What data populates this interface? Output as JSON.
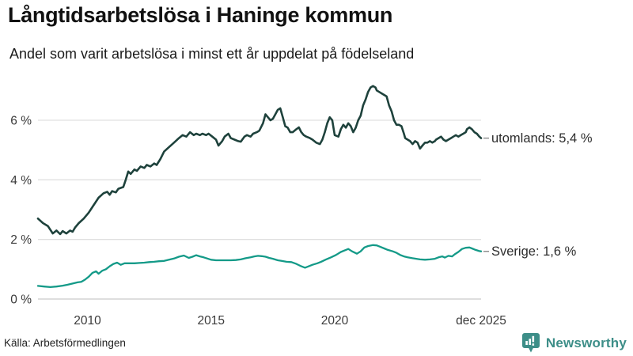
{
  "header": {
    "title": "Långtidsarbetslösa i Haninge kommun",
    "subtitle": "Andel som varit arbetslösa i minst ett år uppdelat på födelseland"
  },
  "footer": {
    "source": "Källa: Arbetsförmedlingen",
    "brand": "Newsworthy",
    "brand_color": "#3d8e88"
  },
  "colors": {
    "series_utomlands": "#1e423c",
    "series_sverige": "#149a88",
    "gridline": "#e0e0e0",
    "baseline": "#c9c9c9",
    "tick_text": "#3a3a3a",
    "leader_dash": "#8a8a8a"
  },
  "chart_data": {
    "type": "line",
    "title": "Långtidsarbetslösa i Haninge kommun",
    "subtitle": "Andel som varit arbetslösa i minst ett år uppdelat på födelseland",
    "xlabel": "",
    "ylabel": "",
    "x_range": [
      2008.0,
      2025.92
    ],
    "y_range": [
      0,
      7.5
    ],
    "grid": true,
    "legend_position": "right-end-of-line",
    "x_ticks": [
      {
        "label": "2010",
        "year": 2010
      },
      {
        "label": "2015",
        "year": 2015
      },
      {
        "label": "2020",
        "year": 2020
      },
      {
        "label": "dec 2025",
        "year": 2025.92
      }
    ],
    "y_ticks": [
      {
        "label": "0 %",
        "value": 0
      },
      {
        "label": "2 %",
        "value": 2
      },
      {
        "label": "4 %",
        "value": 4
      },
      {
        "label": "6 %",
        "value": 6
      }
    ],
    "series": [
      {
        "name": "utomlands",
        "label": "utomlands: 5,4 %",
        "last_value": "5,4 %",
        "color": "#1e423c",
        "stroke_width": 2.6,
        "points": [
          [
            2008.0,
            2.7
          ],
          [
            2008.2,
            2.55
          ],
          [
            2008.4,
            2.45
          ],
          [
            2008.6,
            2.2
          ],
          [
            2008.75,
            2.3
          ],
          [
            2008.9,
            2.18
          ],
          [
            2009.0,
            2.28
          ],
          [
            2009.15,
            2.2
          ],
          [
            2009.3,
            2.3
          ],
          [
            2009.4,
            2.26
          ],
          [
            2009.5,
            2.4
          ],
          [
            2009.65,
            2.55
          ],
          [
            2009.85,
            2.7
          ],
          [
            2010.05,
            2.9
          ],
          [
            2010.25,
            3.15
          ],
          [
            2010.45,
            3.4
          ],
          [
            2010.65,
            3.55
          ],
          [
            2010.8,
            3.6
          ],
          [
            2010.9,
            3.5
          ],
          [
            2011.0,
            3.62
          ],
          [
            2011.15,
            3.58
          ],
          [
            2011.25,
            3.7
          ],
          [
            2011.45,
            3.76
          ],
          [
            2011.55,
            4.0
          ],
          [
            2011.65,
            4.28
          ],
          [
            2011.75,
            4.2
          ],
          [
            2011.9,
            4.35
          ],
          [
            2012.0,
            4.3
          ],
          [
            2012.15,
            4.45
          ],
          [
            2012.3,
            4.4
          ],
          [
            2012.4,
            4.5
          ],
          [
            2012.55,
            4.45
          ],
          [
            2012.7,
            4.55
          ],
          [
            2012.8,
            4.5
          ],
          [
            2012.95,
            4.7
          ],
          [
            2013.1,
            4.95
          ],
          [
            2013.3,
            5.1
          ],
          [
            2013.5,
            5.25
          ],
          [
            2013.7,
            5.4
          ],
          [
            2013.85,
            5.5
          ],
          [
            2014.0,
            5.45
          ],
          [
            2014.15,
            5.6
          ],
          [
            2014.3,
            5.5
          ],
          [
            2014.4,
            5.55
          ],
          [
            2014.55,
            5.5
          ],
          [
            2014.65,
            5.55
          ],
          [
            2014.8,
            5.5
          ],
          [
            2014.9,
            5.55
          ],
          [
            2015.05,
            5.45
          ],
          [
            2015.2,
            5.35
          ],
          [
            2015.3,
            5.15
          ],
          [
            2015.45,
            5.3
          ],
          [
            2015.55,
            5.45
          ],
          [
            2015.7,
            5.55
          ],
          [
            2015.8,
            5.4
          ],
          [
            2015.95,
            5.35
          ],
          [
            2016.1,
            5.3
          ],
          [
            2016.2,
            5.28
          ],
          [
            2016.35,
            5.45
          ],
          [
            2016.45,
            5.5
          ],
          [
            2016.6,
            5.45
          ],
          [
            2016.7,
            5.55
          ],
          [
            2016.85,
            5.6
          ],
          [
            2016.95,
            5.65
          ],
          [
            2017.1,
            5.9
          ],
          [
            2017.2,
            6.2
          ],
          [
            2017.3,
            6.1
          ],
          [
            2017.4,
            6.0
          ],
          [
            2017.5,
            6.05
          ],
          [
            2017.6,
            6.2
          ],
          [
            2017.7,
            6.35
          ],
          [
            2017.8,
            6.4
          ],
          [
            2017.9,
            6.1
          ],
          [
            2018.0,
            5.8
          ],
          [
            2018.1,
            5.75
          ],
          [
            2018.2,
            5.6
          ],
          [
            2018.3,
            5.6
          ],
          [
            2018.45,
            5.7
          ],
          [
            2018.55,
            5.76
          ],
          [
            2018.65,
            5.6
          ],
          [
            2018.75,
            5.5
          ],
          [
            2018.85,
            5.45
          ],
          [
            2019.0,
            5.4
          ],
          [
            2019.1,
            5.35
          ],
          [
            2019.25,
            5.25
          ],
          [
            2019.4,
            5.2
          ],
          [
            2019.5,
            5.35
          ],
          [
            2019.6,
            5.6
          ],
          [
            2019.7,
            5.9
          ],
          [
            2019.8,
            6.1
          ],
          [
            2019.9,
            6.0
          ],
          [
            2020.0,
            5.5
          ],
          [
            2020.15,
            5.45
          ],
          [
            2020.25,
            5.7
          ],
          [
            2020.35,
            5.85
          ],
          [
            2020.45,
            5.75
          ],
          [
            2020.55,
            5.9
          ],
          [
            2020.65,
            5.8
          ],
          [
            2020.75,
            5.6
          ],
          [
            2020.85,
            5.75
          ],
          [
            2020.95,
            6.0
          ],
          [
            2021.05,
            6.15
          ],
          [
            2021.15,
            6.5
          ],
          [
            2021.25,
            6.7
          ],
          [
            2021.35,
            6.95
          ],
          [
            2021.45,
            7.1
          ],
          [
            2021.55,
            7.15
          ],
          [
            2021.65,
            7.1
          ],
          [
            2021.7,
            7.0
          ],
          [
            2021.8,
            6.95
          ],
          [
            2021.9,
            6.9
          ],
          [
            2022.0,
            6.85
          ],
          [
            2022.1,
            6.8
          ],
          [
            2022.2,
            6.5
          ],
          [
            2022.3,
            6.3
          ],
          [
            2022.4,
            6.0
          ],
          [
            2022.5,
            5.85
          ],
          [
            2022.6,
            5.85
          ],
          [
            2022.7,
            5.8
          ],
          [
            2022.8,
            5.55
          ],
          [
            2022.85,
            5.4
          ],
          [
            2022.95,
            5.35
          ],
          [
            2023.05,
            5.3
          ],
          [
            2023.15,
            5.2
          ],
          [
            2023.25,
            5.3
          ],
          [
            2023.35,
            5.25
          ],
          [
            2023.45,
            5.05
          ],
          [
            2023.55,
            5.15
          ],
          [
            2023.65,
            5.25
          ],
          [
            2023.75,
            5.25
          ],
          [
            2023.85,
            5.3
          ],
          [
            2023.95,
            5.25
          ],
          [
            2024.05,
            5.3
          ],
          [
            2024.1,
            5.35
          ],
          [
            2024.2,
            5.4
          ],
          [
            2024.3,
            5.45
          ],
          [
            2024.4,
            5.35
          ],
          [
            2024.5,
            5.3
          ],
          [
            2024.6,
            5.35
          ],
          [
            2024.7,
            5.4
          ],
          [
            2024.8,
            5.45
          ],
          [
            2024.9,
            5.5
          ],
          [
            2025.0,
            5.45
          ],
          [
            2025.1,
            5.5
          ],
          [
            2025.2,
            5.55
          ],
          [
            2025.3,
            5.6
          ],
          [
            2025.35,
            5.7
          ],
          [
            2025.45,
            5.76
          ],
          [
            2025.55,
            5.7
          ],
          [
            2025.65,
            5.6
          ],
          [
            2025.75,
            5.55
          ],
          [
            2025.85,
            5.45
          ],
          [
            2025.92,
            5.4
          ]
        ]
      },
      {
        "name": "Sverige",
        "label": "Sverige: 1,6 %",
        "last_value": "1,6 %",
        "color": "#149a88",
        "stroke_width": 2.3,
        "points": [
          [
            2008.0,
            0.44
          ],
          [
            2008.25,
            0.42
          ],
          [
            2008.5,
            0.4
          ],
          [
            2008.75,
            0.42
          ],
          [
            2009.0,
            0.45
          ],
          [
            2009.2,
            0.48
          ],
          [
            2009.4,
            0.52
          ],
          [
            2009.6,
            0.56
          ],
          [
            2009.75,
            0.58
          ],
          [
            2009.9,
            0.65
          ],
          [
            2010.05,
            0.75
          ],
          [
            2010.2,
            0.88
          ],
          [
            2010.35,
            0.93
          ],
          [
            2010.45,
            0.85
          ],
          [
            2010.6,
            0.95
          ],
          [
            2010.75,
            1.0
          ],
          [
            2010.9,
            1.1
          ],
          [
            2011.05,
            1.18
          ],
          [
            2011.2,
            1.22
          ],
          [
            2011.35,
            1.15
          ],
          [
            2011.5,
            1.2
          ],
          [
            2011.7,
            1.2
          ],
          [
            2011.9,
            1.2
          ],
          [
            2012.1,
            1.21
          ],
          [
            2012.3,
            1.22
          ],
          [
            2012.5,
            1.24
          ],
          [
            2012.7,
            1.25
          ],
          [
            2012.9,
            1.27
          ],
          [
            2013.1,
            1.28
          ],
          [
            2013.3,
            1.32
          ],
          [
            2013.5,
            1.36
          ],
          [
            2013.7,
            1.42
          ],
          [
            2013.9,
            1.46
          ],
          [
            2014.1,
            1.38
          ],
          [
            2014.25,
            1.42
          ],
          [
            2014.4,
            1.47
          ],
          [
            2014.55,
            1.43
          ],
          [
            2014.7,
            1.4
          ],
          [
            2014.85,
            1.36
          ],
          [
            2015.0,
            1.32
          ],
          [
            2015.2,
            1.3
          ],
          [
            2015.4,
            1.3
          ],
          [
            2015.6,
            1.3
          ],
          [
            2015.8,
            1.3
          ],
          [
            2016.0,
            1.31
          ],
          [
            2016.2,
            1.33
          ],
          [
            2016.4,
            1.37
          ],
          [
            2016.6,
            1.4
          ],
          [
            2016.75,
            1.43
          ],
          [
            2016.9,
            1.45
          ],
          [
            2017.05,
            1.44
          ],
          [
            2017.2,
            1.42
          ],
          [
            2017.35,
            1.38
          ],
          [
            2017.5,
            1.35
          ],
          [
            2017.7,
            1.3
          ],
          [
            2017.85,
            1.28
          ],
          [
            2018.05,
            1.25
          ],
          [
            2018.25,
            1.24
          ],
          [
            2018.45,
            1.18
          ],
          [
            2018.65,
            1.1
          ],
          [
            2018.8,
            1.05
          ],
          [
            2018.95,
            1.1
          ],
          [
            2019.1,
            1.15
          ],
          [
            2019.3,
            1.2
          ],
          [
            2019.45,
            1.25
          ],
          [
            2019.65,
            1.33
          ],
          [
            2019.85,
            1.4
          ],
          [
            2020.05,
            1.48
          ],
          [
            2020.25,
            1.58
          ],
          [
            2020.4,
            1.63
          ],
          [
            2020.55,
            1.68
          ],
          [
            2020.7,
            1.6
          ],
          [
            2020.9,
            1.52
          ],
          [
            2021.05,
            1.6
          ],
          [
            2021.2,
            1.73
          ],
          [
            2021.35,
            1.78
          ],
          [
            2021.55,
            1.81
          ],
          [
            2021.7,
            1.8
          ],
          [
            2021.85,
            1.75
          ],
          [
            2022.0,
            1.7
          ],
          [
            2022.15,
            1.65
          ],
          [
            2022.35,
            1.6
          ],
          [
            2022.5,
            1.55
          ],
          [
            2022.65,
            1.48
          ],
          [
            2022.8,
            1.43
          ],
          [
            2022.95,
            1.4
          ],
          [
            2023.15,
            1.37
          ],
          [
            2023.3,
            1.35
          ],
          [
            2023.45,
            1.33
          ],
          [
            2023.65,
            1.32
          ],
          [
            2023.85,
            1.33
          ],
          [
            2024.05,
            1.35
          ],
          [
            2024.2,
            1.4
          ],
          [
            2024.35,
            1.43
          ],
          [
            2024.45,
            1.39
          ],
          [
            2024.6,
            1.45
          ],
          [
            2024.75,
            1.43
          ],
          [
            2024.85,
            1.5
          ],
          [
            2025.0,
            1.58
          ],
          [
            2025.15,
            1.68
          ],
          [
            2025.3,
            1.72
          ],
          [
            2025.45,
            1.73
          ],
          [
            2025.55,
            1.7
          ],
          [
            2025.7,
            1.65
          ],
          [
            2025.85,
            1.61
          ],
          [
            2025.92,
            1.6
          ]
        ]
      }
    ]
  }
}
